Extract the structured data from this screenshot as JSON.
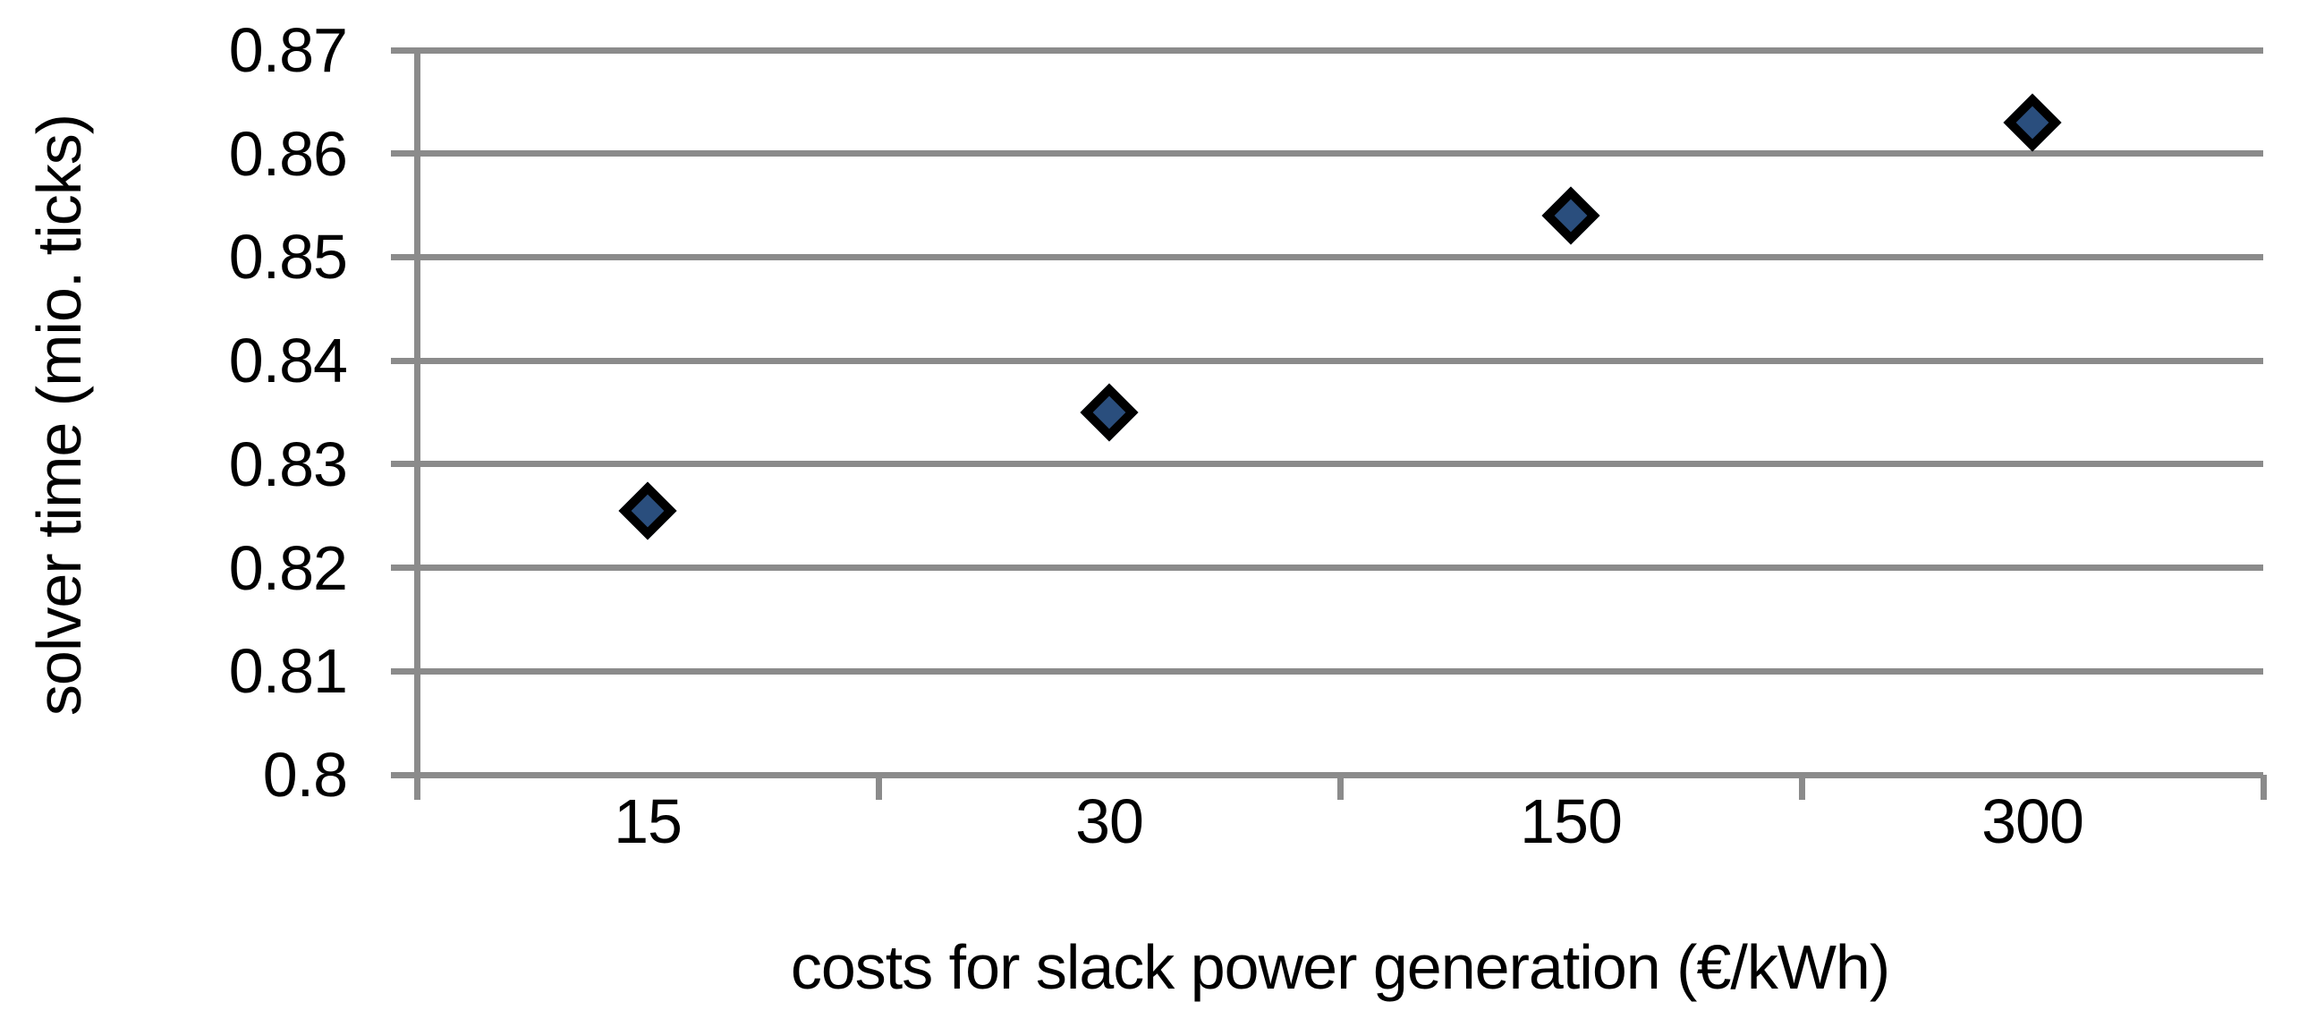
{
  "chart_data": {
    "type": "scatter",
    "title": "",
    "xlabel": "costs for slack power generation (€/kWh)",
    "ylabel": "solver time (mio. ticks)",
    "x_axis_type": "categorical",
    "categories": [
      "15",
      "30",
      "150",
      "300"
    ],
    "values": [
      0.8255,
      0.835,
      0.854,
      0.863
    ],
    "ylim": [
      0.8,
      0.87
    ],
    "yticks": [
      0.8,
      0.81,
      0.82,
      0.83,
      0.84,
      0.85,
      0.86,
      0.87
    ],
    "ytick_labels": [
      "0.8",
      "0.81",
      "0.82",
      "0.83",
      "0.84",
      "0.85",
      "0.86",
      "0.87"
    ],
    "grid": "horizontal",
    "legend": "none",
    "marker_shape": "diamond",
    "colors": {
      "marker_fill": "#2A4E7D",
      "marker_border": "#000000",
      "gridline": "#8B8B8B",
      "axis_line": "#8B8B8B",
      "text": "#000000"
    }
  }
}
